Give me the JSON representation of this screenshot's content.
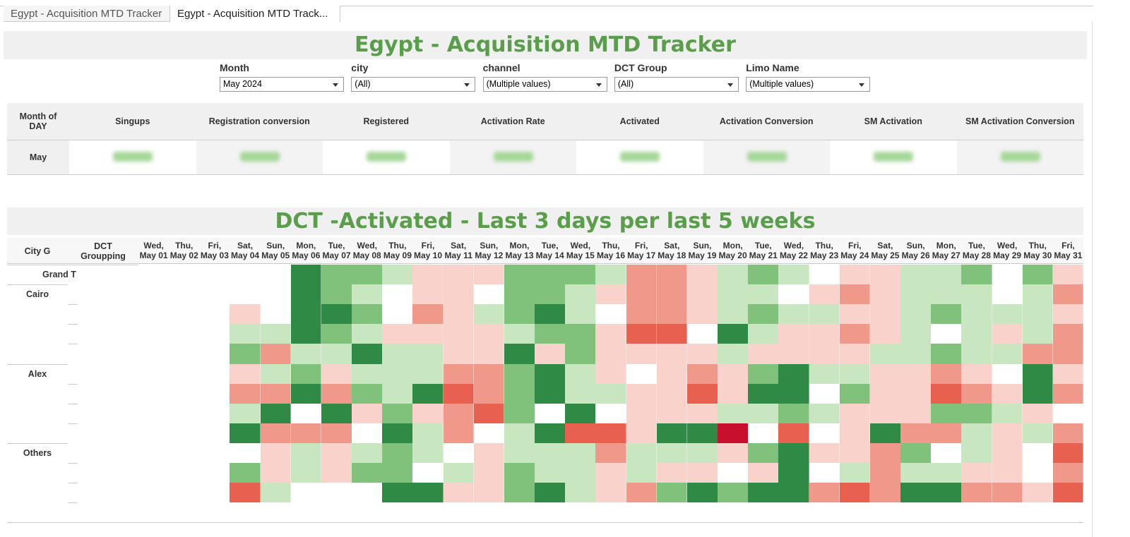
{
  "tabs": [
    "Egypt - Acquisition MTD Tracker",
    "Egypt - Acquisition MTD Track..."
  ],
  "header": {
    "title": "Egypt - Acquisition MTD Tracker"
  },
  "filters": [
    {
      "label": "Month",
      "value": "May 2024"
    },
    {
      "label": "city",
      "value": "(All)"
    },
    {
      "label": "channel",
      "value": "(Multiple values)"
    },
    {
      "label": "DCT Group",
      "value": "(All)"
    },
    {
      "label": "Limo Name",
      "value": "(Multiple values)"
    }
  ],
  "kpi": {
    "columns": [
      "Month of\nDAY",
      "Singups",
      "Registration conversion",
      "Registered",
      "Activation Rate",
      "Activated",
      "Activation Conversion",
      "SM Activation",
      "SM Activation Conversion"
    ],
    "row_label": "May"
  },
  "heatmap": {
    "title": "DCT -Activated - Last 3 days per last 5 weeks",
    "city_header": "City G",
    "group_header": "DCT\nGroupping",
    "weekdays": [
      "Wed,",
      "Thu,",
      "Fri,",
      "Sat,",
      "Sun,",
      "Mon,",
      "Tue,",
      "Wed,",
      "Thu,",
      "Fri,",
      "Sat,",
      "Sun,",
      "Mon,",
      "Tue,",
      "Wed,",
      "Thu,",
      "Fri,",
      "Sat,",
      "Sun,",
      "Mon,",
      "Tue,",
      "Wed,",
      "Thu,",
      "Fri,",
      "Sat,",
      "Sun,",
      "Mon,",
      "Tue,",
      "Wed,",
      "Thu,",
      "Fri,"
    ],
    "dates": [
      "May 01",
      "May 02",
      "May 03",
      "May 04",
      "May 05",
      "May 06",
      "May 07",
      "May 08",
      "May 09",
      "May 10",
      "May 11",
      "May 12",
      "May 13",
      "May 14",
      "May 15",
      "May 16",
      "May 17",
      "May 18",
      "May 19",
      "May 20",
      "May 21",
      "May 22",
      "May 23",
      "May 24",
      "May 25",
      "May 26",
      "May 27",
      "May 28",
      "May 29",
      "May 30",
      "May 31"
    ],
    "row_groups": [
      {
        "label": "Grand T",
        "rows": 1
      },
      {
        "label": "Cairo",
        "rows": 4
      },
      {
        "label": "Alex",
        "rows": 4
      },
      {
        "label": "Others",
        "rows": 4
      }
    ],
    "palette": {
      "-4": "#c8102e",
      "-3": "#e8604f",
      "-2": "#f0988a",
      "-1": "#f8d2cb",
      "0": "#ffffff",
      "1": "#c8e7c0",
      "2": "#80c27b",
      "3": "#2f8a45"
    },
    "levels": [
      [
        0,
        0,
        0,
        0,
        0,
        3,
        2,
        2,
        1,
        -1,
        -1,
        -1,
        2,
        2,
        2,
        1,
        -2,
        -2,
        -1,
        1,
        2,
        1,
        0,
        -1,
        -1,
        1,
        1,
        2,
        0,
        2,
        -1
      ],
      [
        0,
        0,
        0,
        0,
        0,
        3,
        2,
        1,
        0,
        -1,
        -1,
        0,
        2,
        2,
        1,
        -1,
        -2,
        -2,
        -1,
        1,
        1,
        0,
        -1,
        -2,
        -1,
        1,
        1,
        1,
        0,
        1,
        -2
      ],
      [
        0,
        0,
        0,
        -1,
        0,
        3,
        3,
        2,
        0,
        -2,
        -1,
        1,
        2,
        3,
        1,
        0,
        -2,
        -2,
        -1,
        1,
        2,
        1,
        1,
        -1,
        -1,
        1,
        2,
        1,
        1,
        1,
        -1
      ],
      [
        0,
        0,
        0,
        1,
        1,
        3,
        2,
        1,
        -1,
        -1,
        -1,
        -1,
        1,
        2,
        2,
        -1,
        -3,
        -3,
        0,
        3,
        1,
        -1,
        -1,
        -2,
        -1,
        1,
        0,
        1,
        -1,
        1,
        -2
      ],
      [
        0,
        0,
        0,
        2,
        -2,
        1,
        1,
        3,
        1,
        1,
        -1,
        -1,
        3,
        -1,
        2,
        -1,
        -1,
        -1,
        -1,
        1,
        -1,
        -1,
        -1,
        -1,
        1,
        1,
        2,
        1,
        1,
        -2,
        -2
      ],
      [
        0,
        0,
        0,
        -1,
        1,
        2,
        -1,
        1,
        1,
        1,
        -2,
        -2,
        2,
        3,
        1,
        -1,
        0,
        -1,
        -2,
        -1,
        2,
        3,
        1,
        1,
        -1,
        -1,
        -2,
        -1,
        0,
        3,
        -1
      ],
      [
        0,
        0,
        0,
        -2,
        -2,
        3,
        -2,
        2,
        1,
        3,
        -3,
        -2,
        2,
        3,
        1,
        1,
        -1,
        -1,
        -3,
        -1,
        3,
        3,
        0,
        2,
        -1,
        -1,
        -3,
        -2,
        -1,
        3,
        -2
      ],
      [
        0,
        0,
        0,
        1,
        3,
        0,
        3,
        -1,
        2,
        -1,
        -2,
        -3,
        2,
        0,
        3,
        0,
        -1,
        -1,
        -1,
        1,
        1,
        2,
        1,
        -1,
        -1,
        -1,
        2,
        2,
        1,
        -1,
        0
      ],
      [
        0,
        0,
        0,
        3,
        -2,
        -2,
        -2,
        0,
        3,
        1,
        -2,
        0,
        1,
        3,
        -3,
        -3,
        -1,
        3,
        3,
        -4,
        0,
        -3,
        0,
        -1,
        3,
        -2,
        -2,
        1,
        -1,
        1,
        -2
      ],
      [
        0,
        0,
        0,
        0,
        -1,
        1,
        -1,
        1,
        2,
        1,
        0,
        -1,
        1,
        1,
        1,
        -2,
        1,
        1,
        1,
        -1,
        2,
        3,
        -1,
        -1,
        -2,
        2,
        0,
        1,
        -1,
        0,
        -3
      ],
      [
        0,
        0,
        0,
        2,
        -1,
        1,
        -1,
        2,
        2,
        0,
        1,
        -1,
        2,
        1,
        1,
        -1,
        1,
        -1,
        -1,
        0,
        -1,
        3,
        0,
        1,
        -2,
        1,
        1,
        -1,
        -1,
        0,
        -2
      ],
      [
        0,
        0,
        0,
        -3,
        1,
        0,
        0,
        0,
        3,
        3,
        -1,
        -1,
        2,
        3,
        1,
        -1,
        -2,
        2,
        3,
        2,
        3,
        3,
        -2,
        -3,
        -2,
        3,
        3,
        -2,
        -2,
        -1,
        -3
      ],
      [
        0,
        0,
        0,
        0,
        0,
        0,
        0,
        0,
        0,
        0,
        0,
        0,
        0,
        0,
        0,
        0,
        0,
        0,
        0,
        0,
        0,
        0,
        0,
        0,
        0,
        0,
        0,
        0,
        0,
        0,
        0
      ]
    ]
  }
}
